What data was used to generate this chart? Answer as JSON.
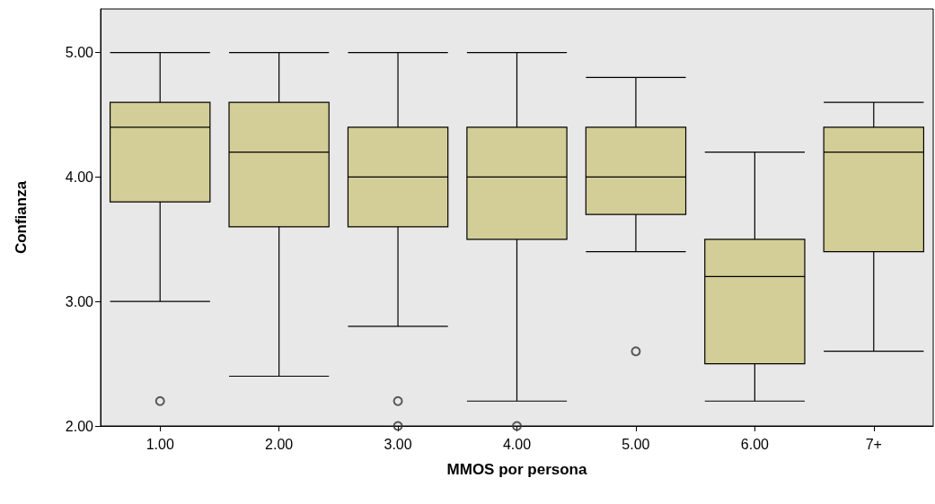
{
  "chart_data": {
    "type": "box",
    "xlabel": "MMOS por persona",
    "ylabel": "Confianza",
    "categories": [
      "1.00",
      "2.00",
      "3.00",
      "4.00",
      "5.00",
      "6.00",
      "7+"
    ],
    "color": "#d3ce97",
    "boxes": [
      {
        "low": 3.0,
        "q1": 3.8,
        "median": 4.4,
        "q3": 4.6,
        "high": 5.0,
        "outliers": [
          2.2
        ]
      },
      {
        "low": 2.4,
        "q1": 3.6,
        "median": 4.2,
        "q3": 4.6,
        "high": 5.0
      },
      {
        "low": 2.8,
        "q1": 3.6,
        "median": 4.0,
        "q3": 4.4,
        "high": 5.0,
        "outliers": [
          2.2,
          2.0
        ]
      },
      {
        "low": 2.2,
        "q1": 3.5,
        "median": 4.0,
        "q3": 4.4,
        "high": 5.0,
        "outliers": [
          2.0
        ]
      },
      {
        "low": 3.4,
        "q1": 3.7,
        "median": 4.0,
        "q3": 4.4,
        "high": 4.8,
        "outliers": [
          2.6
        ]
      },
      {
        "low": 2.2,
        "q1": 2.5,
        "median": 3.2,
        "q3": 3.5,
        "high": 4.2
      },
      {
        "low": 2.6,
        "q1": 3.4,
        "median": 4.2,
        "q3": 4.4,
        "high": 4.6
      }
    ],
    "ylim": [
      2.0,
      5.35
    ],
    "yticks": [
      {
        "value": 2,
        "label": "2.00"
      },
      {
        "value": 3,
        "label": "3.00"
      },
      {
        "value": 4,
        "label": "4.00"
      },
      {
        "value": 5,
        "label": "5.00"
      }
    ],
    "grid": false,
    "legend": false
  }
}
